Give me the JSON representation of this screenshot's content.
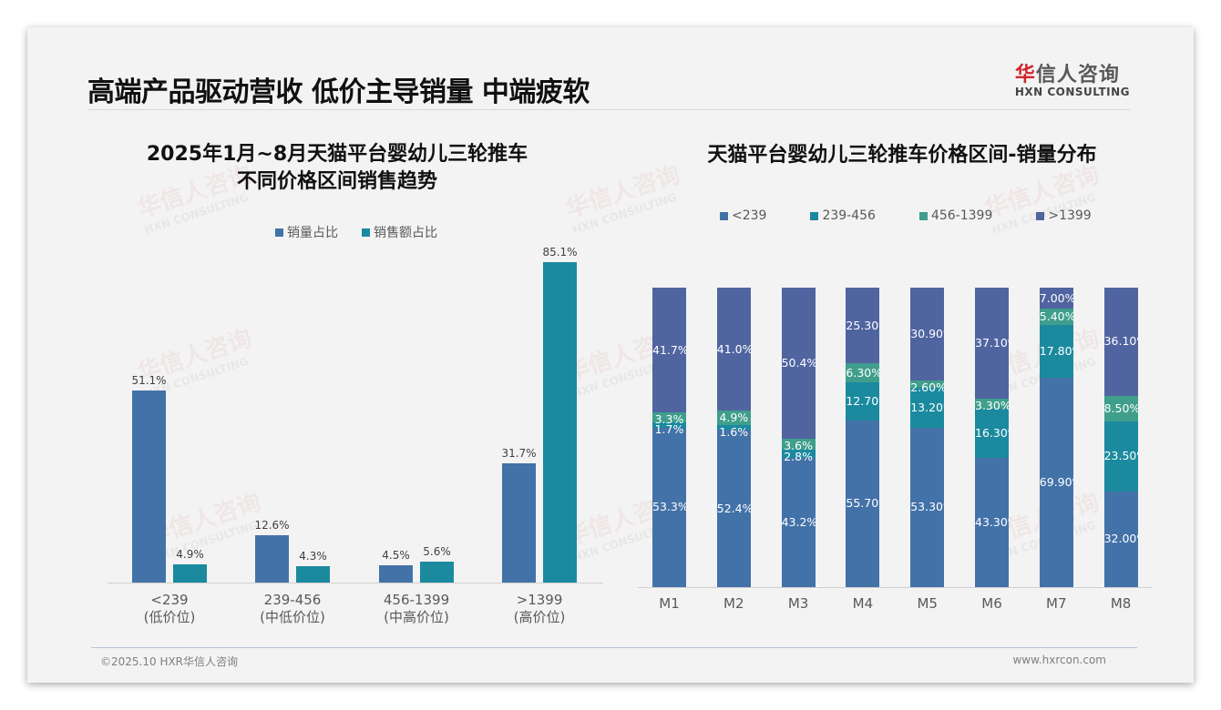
{
  "header": {
    "title": "高端产品驱动营收 低价主导销量 中端疲软",
    "logo_cn_first": "华",
    "logo_cn_rest": "信人咨询",
    "logo_en": "HXN CONSULTING"
  },
  "footer": {
    "copyright": "©2025.10 HXR华信人咨询",
    "website": "www.hxrcon.com"
  },
  "watermark": {
    "cn": "华信人咨询",
    "en": "HXN CONSULTING"
  },
  "colors": {
    "lt239": "#4372a8",
    "r239_456": "#1b8a9f",
    "r456_1399": "#3f9e8c",
    "gt1399": "#5064a0",
    "volume": "#4372a8",
    "revenue": "#1b8a9f"
  },
  "chart_data": [
    {
      "type": "bar",
      "title": "2025年1月~8月天猫平台婴幼儿三轮推车 不同价格区间销售趋势",
      "title_line1": "2025年1月~8月天猫平台婴幼儿三轮推车",
      "title_line2": "不同价格区间销售趋势",
      "categories": [
        "<239 (低价位)",
        "239-456 (中低价位)",
        "456-1399 (中高价位)",
        ">1399 (高价位)"
      ],
      "category_lines": [
        [
          "<239",
          "(低价位)"
        ],
        [
          "239-456",
          "(中低价位)"
        ],
        [
          "456-1399",
          "(中高价位)"
        ],
        [
          ">1399",
          "(高价位)"
        ]
      ],
      "series": [
        {
          "name": "销量占比",
          "values": [
            51.1,
            12.6,
            4.5,
            31.7
          ],
          "labels": [
            "51.1%",
            "12.6%",
            "4.5%",
            "31.7%"
          ]
        },
        {
          "name": "销售额占比",
          "values": [
            4.9,
            4.3,
            5.6,
            85.1
          ],
          "labels": [
            "4.9%",
            "4.3%",
            "5.6%",
            "85.1%"
          ]
        }
      ],
      "xlabel": "",
      "ylabel": "",
      "ylim": [
        0,
        90
      ],
      "legend_position": "top",
      "grid": false
    },
    {
      "type": "bar",
      "stacked": true,
      "title": "天猫平台婴幼儿三轮推车价格区间-销量分布",
      "categories": [
        "M1",
        "M2",
        "M3",
        "M4",
        "M5",
        "M6",
        "M7",
        "M8"
      ],
      "series": [
        {
          "name": "<239",
          "values": [
            53.3,
            52.4,
            43.2,
            55.7,
            53.3,
            43.3,
            69.9,
            32.0
          ],
          "labels": [
            "53.3%",
            "52.4%",
            "43.2%",
            "55.70%",
            "53.30%",
            "43.30%",
            "69.90%",
            "32.00%"
          ]
        },
        {
          "name": "239-456",
          "values": [
            1.7,
            1.6,
            2.8,
            12.7,
            13.2,
            16.3,
            17.8,
            23.5
          ],
          "labels": [
            "1.7%",
            "1.6%",
            "2.8%",
            "12.70%",
            "13.20%",
            "16.30%",
            "17.80%",
            "23.50%"
          ]
        },
        {
          "name": "456-1399",
          "values": [
            3.3,
            4.9,
            3.6,
            6.3,
            2.6,
            3.3,
            5.4,
            8.5
          ],
          "labels": [
            "3.3%",
            "4.9%",
            "3.6%",
            "6.30%",
            "2.60%",
            "3.30%",
            "5.40%",
            "8.50%"
          ]
        },
        {
          "name": ">1399",
          "values": [
            41.7,
            41.0,
            50.4,
            25.3,
            30.9,
            37.1,
            7.0,
            36.1
          ],
          "labels": [
            "41.7%",
            "41.0%",
            "50.4%",
            "25.30%",
            "30.90%",
            "37.10%",
            "7.00%",
            "36.10%"
          ]
        }
      ],
      "xlabel": "",
      "ylabel": "",
      "ylim": [
        0,
        100
      ],
      "legend_position": "top",
      "grid": false
    }
  ]
}
